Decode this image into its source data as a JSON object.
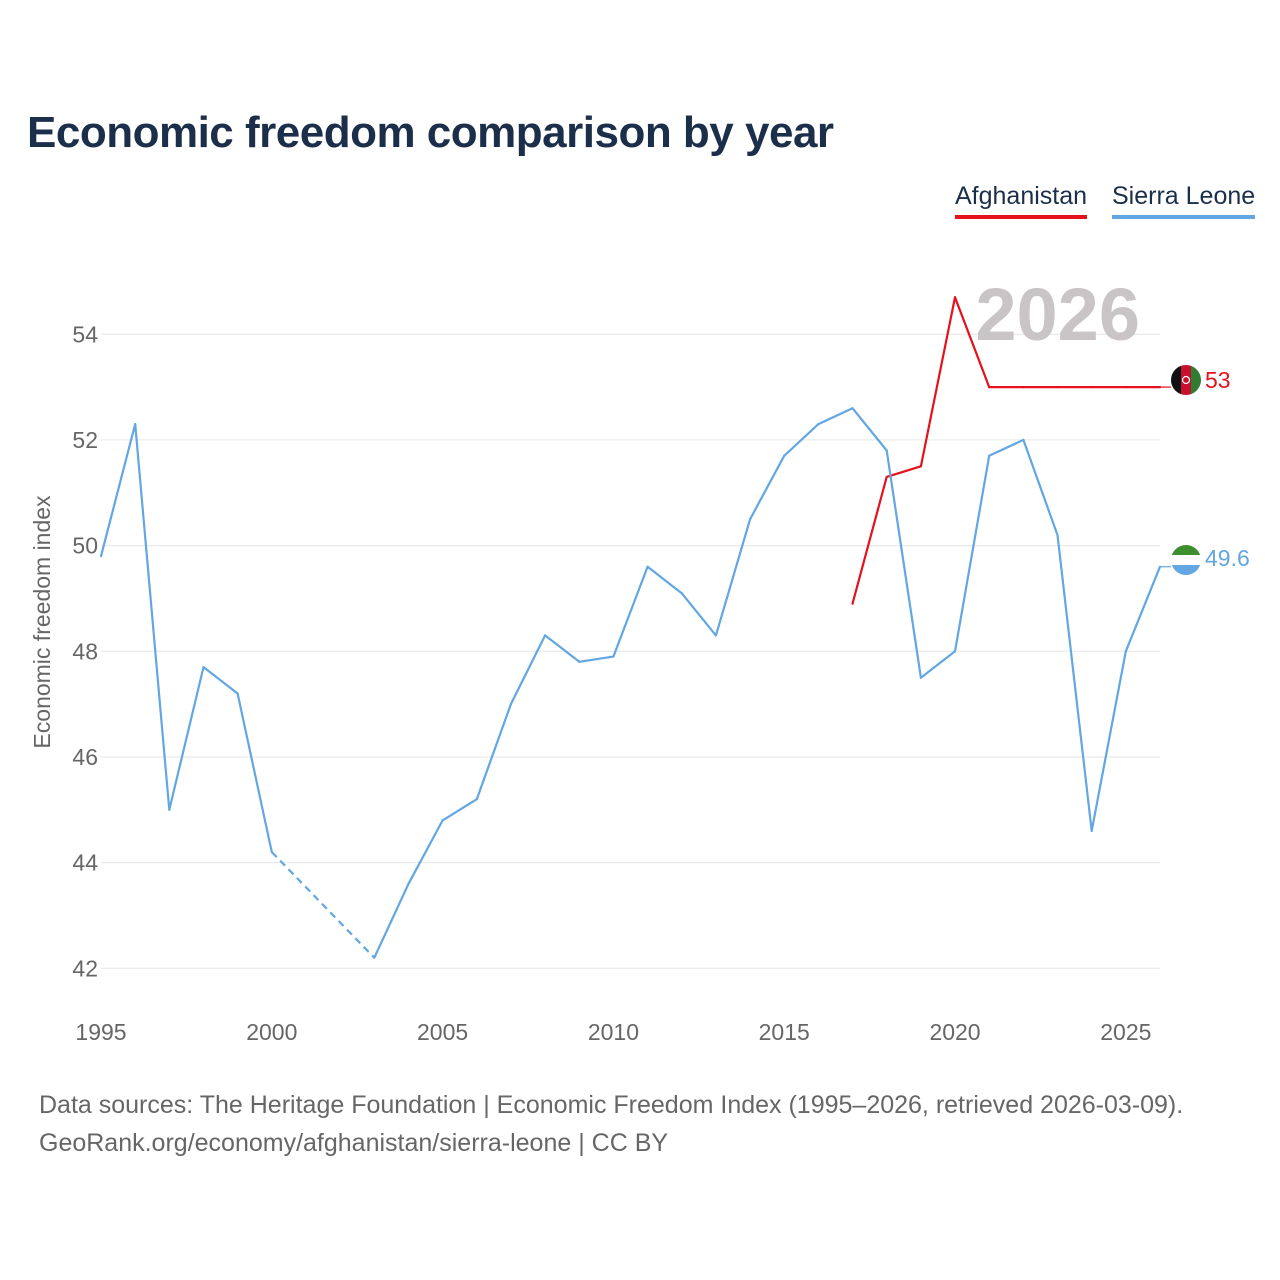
{
  "chart_data": {
    "type": "line",
    "title": "Economic freedom comparison by year",
    "ylabel": "Economic freedom index",
    "xlabel": "",
    "year_label": "2026",
    "xlim": [
      1995,
      2026
    ],
    "ylim": [
      41.4,
      55.5
    ],
    "x_ticks": [
      1995,
      2000,
      2005,
      2010,
      2015,
      2020,
      2025
    ],
    "y_ticks": [
      42,
      44,
      46,
      48,
      50,
      52,
      54
    ],
    "legend_position": "top-right",
    "series": [
      {
        "name": "Afghanistan",
        "color": "#e3121c",
        "end_label": "53",
        "flag_icon": "afghanistan-flag-icon",
        "x": [
          2017,
          2018,
          2019,
          2020,
          2021,
          2022,
          2023,
          2024,
          2025,
          2026
        ],
        "values": [
          48.9,
          51.3,
          51.5,
          54.7,
          53.0,
          53.0,
          53.0,
          53.0,
          53.0,
          53.0
        ]
      },
      {
        "name": "Sierra Leone",
        "color": "#62a6e2",
        "end_label": "49.6",
        "flag_icon": "sierra-leone-flag-icon",
        "x": [
          1995,
          1996,
          1997,
          1998,
          1999,
          2000,
          2001,
          2002,
          2003,
          2004,
          2005,
          2006,
          2007,
          2008,
          2009,
          2010,
          2011,
          2012,
          2013,
          2014,
          2015,
          2016,
          2017,
          2018,
          2019,
          2020,
          2021,
          2022,
          2023,
          2024,
          2025,
          2026
        ],
        "values": [
          49.8,
          52.3,
          45.0,
          47.7,
          47.2,
          44.2,
          null,
          null,
          42.2,
          43.6,
          44.8,
          45.2,
          47.0,
          48.3,
          47.8,
          47.9,
          49.6,
          49.1,
          48.3,
          50.5,
          51.7,
          52.3,
          52.6,
          51.8,
          47.5,
          48.0,
          51.7,
          52.0,
          50.2,
          44.6,
          48.0,
          49.6
        ]
      }
    ]
  },
  "legend": {
    "afghanistan": "Afghanistan",
    "sierra_leone": "Sierra Leone"
  },
  "footer": {
    "line1": "Data sources: The Heritage Foundation | Economic Freedom Index (1995–2026, retrieved 2026-03-09).",
    "line2": "GeoRank.org/economy/afghanistan/sierra-leone | CC BY"
  }
}
